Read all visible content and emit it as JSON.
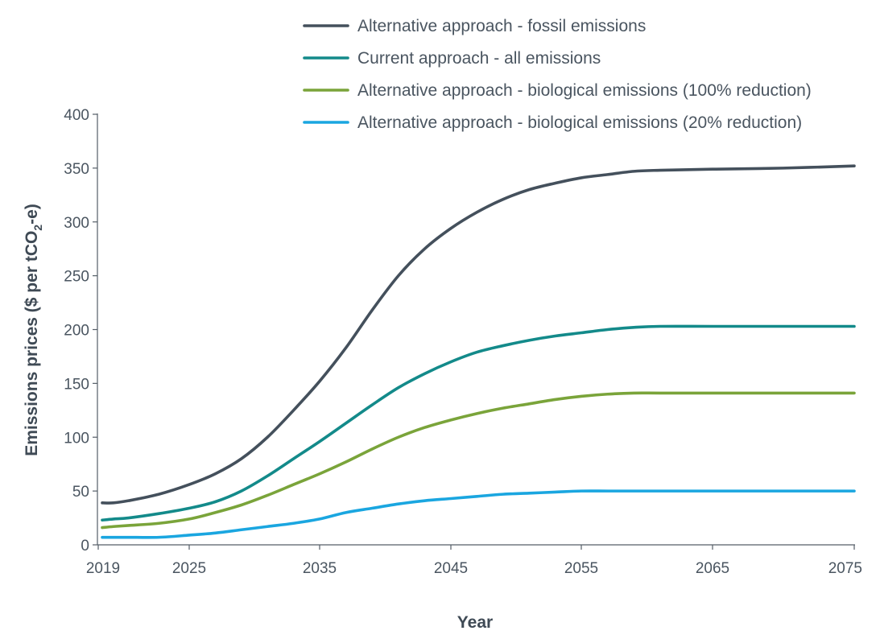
{
  "chart_data": {
    "type": "line",
    "title": "",
    "xlabel": "Year",
    "ylabel": "Emissions prices ($ per tCO₂-e)",
    "ylabel_parts": {
      "main": "Emissions prices ($ per tCO",
      "sub": "2",
      "tail": "-e)"
    },
    "xlim": [
      2019,
      2075
    ],
    "ylim": [
      0,
      400
    ],
    "x_ticks": [
      2019,
      2025,
      2035,
      2045,
      2055,
      2065,
      2075
    ],
    "y_ticks": [
      0,
      50,
      100,
      150,
      200,
      250,
      300,
      350,
      400
    ],
    "grid": false,
    "legend_position": "top-right",
    "x": [
      2019,
      2020,
      2021,
      2023,
      2025,
      2027,
      2029,
      2031,
      2033,
      2035,
      2037,
      2039,
      2041,
      2043,
      2045,
      2047,
      2049,
      2051,
      2053,
      2055,
      2057,
      2059,
      2061,
      2065,
      2070,
      2075
    ],
    "series": [
      {
        "name": "Alternative approach - fossil emissions",
        "color": "#44505c",
        "values": [
          39,
          39,
          41,
          47,
          56,
          66,
          80,
          100,
          125,
          152,
          183,
          218,
          250,
          275,
          294,
          309,
          321,
          330,
          336,
          341,
          344,
          347,
          348,
          349,
          350,
          352
        ]
      },
      {
        "name": "Current approach - all emissions",
        "color": "#138a8a",
        "values": [
          23,
          24,
          25,
          29,
          34,
          40,
          50,
          64,
          80,
          96,
          113,
          130,
          146,
          159,
          170,
          179,
          185,
          190,
          194,
          197,
          200,
          202,
          203,
          203,
          203,
          203
        ]
      },
      {
        "name": "Alternative approach - biological emissions (100% reduction)",
        "color": "#7aa43a",
        "values": [
          16,
          17,
          18,
          20,
          24,
          30,
          37,
          46,
          56,
          66,
          77,
          89,
          100,
          109,
          116,
          122,
          127,
          131,
          135,
          138,
          140,
          141,
          141,
          141,
          141,
          141
        ]
      },
      {
        "name": "Alternative approach - biological emissions (20% reduction)",
        "color": "#1aa6e0",
        "values": [
          7,
          7,
          7,
          7,
          9,
          11,
          14,
          17,
          20,
          24,
          30,
          34,
          38,
          41,
          43,
          45,
          47,
          48,
          49,
          50,
          50,
          50,
          50,
          50,
          50,
          50
        ]
      }
    ]
  }
}
